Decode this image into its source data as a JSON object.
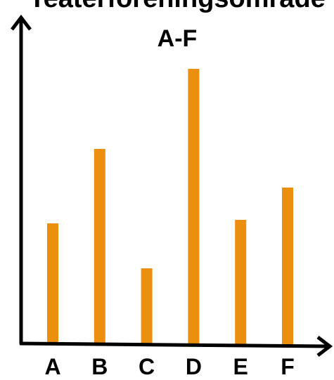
{
  "chart_data": {
    "type": "bar",
    "title": "Teaterföreningsområde",
    "subtitle": "A-F",
    "categories": [
      "A",
      "B",
      "C",
      "D",
      "E",
      "F"
    ],
    "values": [
      172,
      278,
      108,
      392,
      177,
      223
    ],
    "xlabel": "",
    "ylabel": "",
    "ylim": [
      0,
      480
    ],
    "grid": false,
    "bar_color": "#ec8f0e",
    "axis_color": "#000000"
  }
}
